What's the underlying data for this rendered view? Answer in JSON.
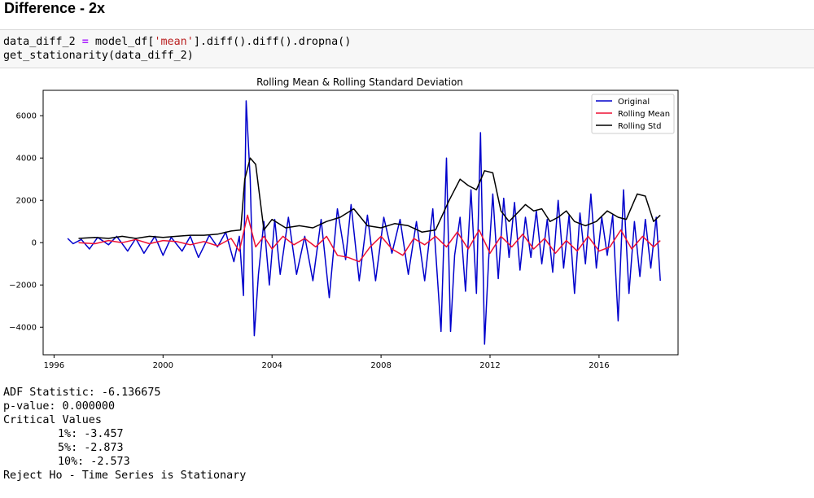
{
  "heading": "Difference - 2x",
  "code": {
    "line1": {
      "var": "data_diff_2 ",
      "op": "=",
      "mid": " model_df[",
      "str": "'mean'",
      "end": "].diff().diff().dropna()"
    },
    "line2": "get_stationarity(data_diff_2)"
  },
  "chart_data": {
    "type": "line",
    "title": "Rolling Mean & Rolling Standard Deviation",
    "x_ticks": [
      "1996",
      "2000",
      "2004",
      "2008",
      "2012",
      "2016"
    ],
    "y_ticks": [
      "6000",
      "4000",
      "2000",
      "0",
      "−2000",
      "−4000"
    ],
    "xlim": [
      1995.6,
      2018.9
    ],
    "ylim": [
      -5300,
      7200
    ],
    "legend_position": "top-right",
    "colors": {
      "Original": "#0000cc",
      "Rolling Mean": "#ee1133",
      "Rolling Std": "#000000"
    },
    "series": [
      {
        "name": "Original",
        "x": [
          1996.5,
          1996.7,
          1997.0,
          1997.3,
          1997.6,
          1998.0,
          1998.3,
          1998.7,
          1999.0,
          1999.3,
          1999.7,
          2000.0,
          2000.3,
          2000.7,
          2001.0,
          2001.3,
          2001.7,
          2002.0,
          2002.3,
          2002.6,
          2002.8,
          2002.95,
          2003.05,
          2003.2,
          2003.35,
          2003.5,
          2003.7,
          2003.9,
          2004.1,
          2004.3,
          2004.6,
          2004.9,
          2005.2,
          2005.5,
          2005.8,
          2006.1,
          2006.4,
          2006.7,
          2006.9,
          2007.2,
          2007.5,
          2007.8,
          2008.1,
          2008.4,
          2008.7,
          2009.0,
          2009.3,
          2009.6,
          2009.9,
          2010.2,
          2010.4,
          2010.55,
          2010.7,
          2010.9,
          2011.1,
          2011.3,
          2011.5,
          2011.65,
          2011.8,
          2011.95,
          2012.1,
          2012.3,
          2012.5,
          2012.7,
          2012.9,
          2013.1,
          2013.3,
          2013.5,
          2013.7,
          2013.9,
          2014.1,
          2014.3,
          2014.5,
          2014.7,
          2014.9,
          2015.1,
          2015.3,
          2015.5,
          2015.7,
          2015.9,
          2016.1,
          2016.3,
          2016.5,
          2016.7,
          2016.9,
          2017.1,
          2017.3,
          2017.5,
          2017.7,
          2017.9,
          2018.1,
          2018.25
        ],
        "y": [
          200,
          -50,
          150,
          -300,
          250,
          -100,
          300,
          -400,
          200,
          -500,
          300,
          -600,
          250,
          -400,
          300,
          -700,
          350,
          -200,
          500,
          -900,
          300,
          -2500,
          6700,
          3000,
          -4400,
          -1500,
          1000,
          -2000,
          1100,
          -1500,
          1200,
          -1500,
          300,
          -1800,
          1100,
          -2600,
          1600,
          -800,
          1800,
          -1800,
          1300,
          -1800,
          1200,
          -500,
          1100,
          -1500,
          1000,
          -1800,
          1600,
          -4200,
          4000,
          -4200,
          -600,
          1200,
          -2300,
          2500,
          -2400,
          5200,
          -4800,
          -800,
          2300,
          -1700,
          2100,
          -700,
          1900,
          -1300,
          1200,
          -700,
          1500,
          -1000,
          1100,
          -1400,
          2000,
          -1200,
          1300,
          -2400,
          1400,
          -1000,
          2300,
          -1200,
          1200,
          -600,
          1300,
          -3700,
          2500,
          -2400,
          1000,
          -1600,
          1100,
          -1200,
          1200,
          -1800
        ]
      },
      {
        "name": "Rolling Mean",
        "x": [
          1996.9,
          1997.5,
          1998.0,
          1998.5,
          1999.0,
          1999.5,
          2000.0,
          2000.5,
          2001.0,
          2001.5,
          2002.0,
          2002.5,
          2002.8,
          2003.1,
          2003.4,
          2003.7,
          2004.0,
          2004.4,
          2004.8,
          2005.2,
          2005.6,
          2006.0,
          2006.4,
          2006.8,
          2007.2,
          2007.6,
          2008.0,
          2008.4,
          2008.8,
          2009.2,
          2009.6,
          2010.0,
          2010.4,
          2010.8,
          2011.2,
          2011.6,
          2012.0,
          2012.4,
          2012.8,
          2013.2,
          2013.6,
          2014.0,
          2014.4,
          2014.8,
          2015.2,
          2015.6,
          2016.0,
          2016.4,
          2016.8,
          2017.2,
          2017.6,
          2018.0,
          2018.25
        ],
        "y": [
          0,
          -50,
          100,
          0,
          150,
          -50,
          100,
          50,
          -100,
          50,
          -150,
          200,
          -400,
          1300,
          -200,
          300,
          -300,
          300,
          -100,
          200,
          -200,
          300,
          -600,
          -700,
          -900,
          -200,
          300,
          -300,
          -600,
          200,
          -100,
          300,
          -200,
          500,
          -300,
          600,
          -500,
          300,
          -200,
          400,
          -300,
          200,
          -500,
          100,
          -400,
          300,
          -400,
          -200,
          600,
          -300,
          300,
          -200,
          100
        ]
      },
      {
        "name": "Rolling Std",
        "x": [
          1996.9,
          1997.5,
          1998.0,
          1998.5,
          1999.0,
          1999.5,
          2000.0,
          2000.5,
          2001.0,
          2001.5,
          2002.0,
          2002.5,
          2002.85,
          2003.0,
          2003.2,
          2003.4,
          2003.7,
          2004.0,
          2004.5,
          2005.0,
          2005.5,
          2006.0,
          2006.5,
          2007.0,
          2007.5,
          2008.0,
          2008.5,
          2009.0,
          2009.5,
          2010.0,
          2010.5,
          2010.9,
          2011.2,
          2011.5,
          2011.8,
          2012.1,
          2012.4,
          2012.7,
          2013.0,
          2013.3,
          2013.6,
          2013.9,
          2014.2,
          2014.5,
          2014.8,
          2015.1,
          2015.5,
          2015.9,
          2016.3,
          2016.7,
          2017.0,
          2017.4,
          2017.7,
          2018.0,
          2018.25
        ],
        "y": [
          200,
          250,
          200,
          300,
          200,
          300,
          250,
          300,
          350,
          350,
          400,
          550,
          600,
          3000,
          4000,
          3700,
          600,
          1100,
          700,
          800,
          700,
          1000,
          1200,
          1600,
          800,
          700,
          900,
          800,
          500,
          600,
          2000,
          3000,
          2700,
          2500,
          3400,
          3300,
          1500,
          1000,
          1400,
          1800,
          1500,
          1600,
          1000,
          1200,
          1500,
          1000,
          800,
          1000,
          1500,
          1200,
          1100,
          2300,
          2200,
          1000,
          1300
        ]
      }
    ]
  },
  "output_lines": {
    "adf": "ADF Statistic: -6.136675",
    "pvalue": "p-value: 0.000000",
    "crit_header": "Critical Values",
    "crit_1": "1%: -3.457",
    "crit_5": "5%: -2.873",
    "crit_10": "10%: -2.573",
    "conclusion": "Reject Ho - Time Series is Stationary"
  }
}
